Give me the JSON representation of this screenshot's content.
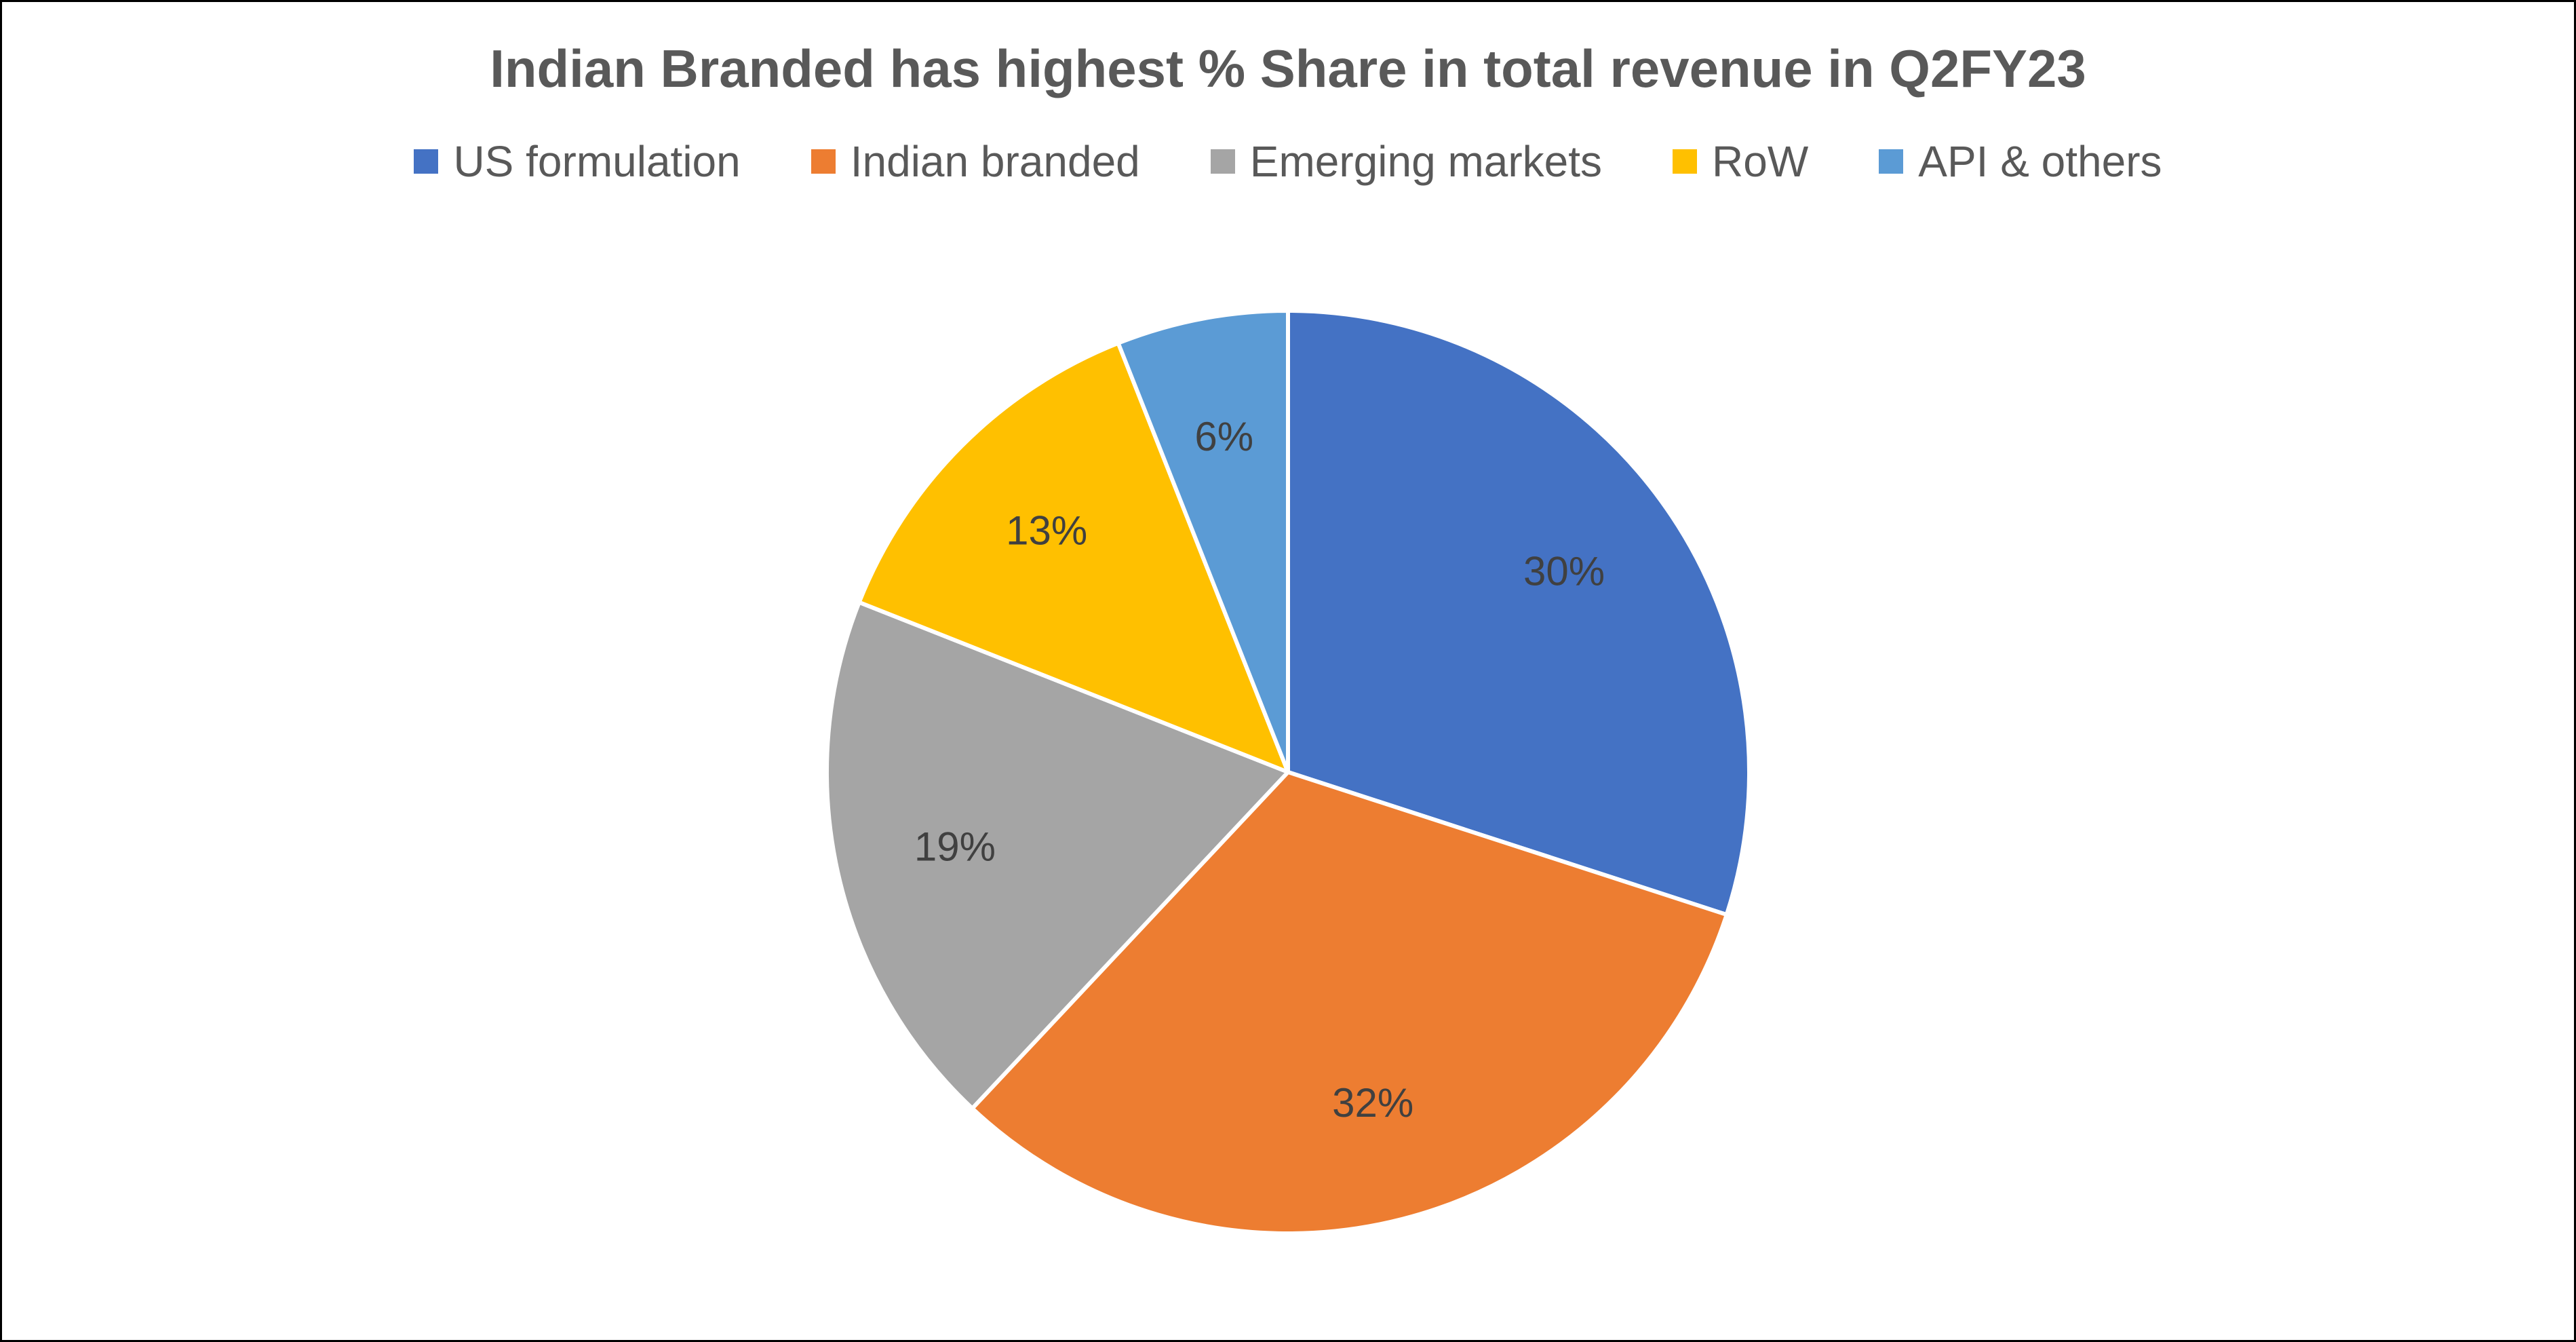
{
  "chart_data": {
    "type": "pie",
    "title": "Indian Branded has highest % Share in total revenue in Q2FY23",
    "legend_position": "top",
    "start_angle_deg": 0,
    "direction": "clockwise",
    "categories": [
      "US formulation",
      "Indian branded",
      "Emerging markets",
      "RoW",
      "API & others"
    ],
    "values": [
      30,
      32,
      19,
      13,
      6
    ],
    "labels": [
      "30%",
      "32%",
      "19%",
      "13%",
      "6%"
    ],
    "colors": [
      "#4472C4",
      "#ED7D31",
      "#A5A5A5",
      "#FFC000",
      "#5B9BD5"
    ]
  }
}
